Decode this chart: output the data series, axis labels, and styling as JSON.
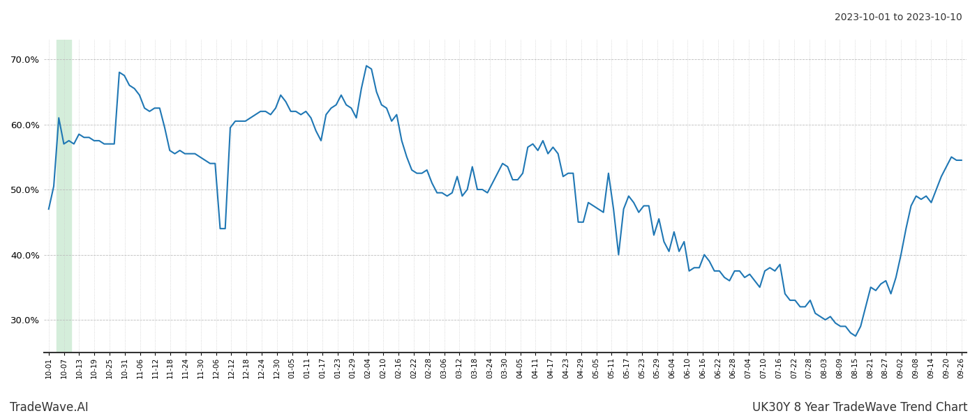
{
  "title_date_range": "2023-10-01 to 2023-10-10",
  "footer_left": "TradeWave.AI",
  "footer_right": "UK30Y 8 Year TradeWave Trend Chart",
  "line_color": "#1f77b4",
  "line_width": 1.5,
  "shaded_region_color": "#d4edda",
  "background_color": "#ffffff",
  "grid_color_h": "#bbbbbb",
  "grid_color_v": "#cccccc",
  "ylim": [
    25.0,
    73.0
  ],
  "yticks": [
    30.0,
    40.0,
    50.0,
    60.0,
    70.0
  ],
  "x_labels": [
    "10-01",
    "10-07",
    "10-13",
    "10-19",
    "10-25",
    "10-31",
    "11-06",
    "11-12",
    "11-18",
    "11-24",
    "11-30",
    "12-06",
    "12-12",
    "12-18",
    "12-24",
    "12-30",
    "01-05",
    "01-11",
    "01-17",
    "01-23",
    "01-29",
    "02-04",
    "02-10",
    "02-16",
    "02-22",
    "02-28",
    "03-06",
    "03-12",
    "03-18",
    "03-24",
    "03-30",
    "04-05",
    "04-11",
    "04-17",
    "04-23",
    "04-29",
    "05-05",
    "05-11",
    "05-17",
    "05-23",
    "05-29",
    "06-04",
    "06-10",
    "06-16",
    "06-22",
    "06-28",
    "07-04",
    "07-10",
    "07-16",
    "07-22",
    "07-28",
    "08-03",
    "08-09",
    "08-15",
    "08-21",
    "08-27",
    "09-02",
    "09-08",
    "09-14",
    "09-20",
    "09-26"
  ],
  "values": [
    47.0,
    50.5,
    61.0,
    57.0,
    57.5,
    57.0,
    58.5,
    58.0,
    58.0,
    57.5,
    57.5,
    57.0,
    57.0,
    57.0,
    68.0,
    67.5,
    66.0,
    65.5,
    64.5,
    62.5,
    62.0,
    62.5,
    62.5,
    59.5,
    56.0,
    55.5,
    56.0,
    55.5,
    55.5,
    55.5,
    55.0,
    54.5,
    54.0,
    54.0,
    44.0,
    44.0,
    59.5,
    60.5,
    60.5,
    60.5,
    61.0,
    61.5,
    62.0,
    62.0,
    61.5,
    62.5,
    64.5,
    63.5,
    62.0,
    62.0,
    61.5,
    62.0,
    61.0,
    59.0,
    57.5,
    61.5,
    62.5,
    63.0,
    64.5,
    63.0,
    62.5,
    61.0,
    65.5,
    69.0,
    68.5,
    65.0,
    63.0,
    62.5,
    60.5,
    61.5,
    57.5,
    55.0,
    53.0,
    52.5,
    52.5,
    53.0,
    51.0,
    49.5,
    49.5,
    49.0,
    49.5,
    52.0,
    49.0,
    50.0,
    53.5,
    50.0,
    50.0,
    49.5,
    51.0,
    52.5,
    54.0,
    53.5,
    51.5,
    51.5,
    52.5,
    56.5,
    57.0,
    56.0,
    57.5,
    55.5,
    56.5,
    55.5,
    52.0,
    52.5,
    52.5,
    45.0,
    45.0,
    48.0,
    47.5,
    47.0,
    46.5,
    52.5,
    47.0,
    40.0,
    47.0,
    49.0,
    48.0,
    46.5,
    47.5,
    47.5,
    43.0,
    45.5,
    42.0,
    40.5,
    43.5,
    40.5,
    42.0,
    37.5,
    38.0,
    38.0,
    40.0,
    39.0,
    37.5,
    37.5,
    36.5,
    36.0,
    37.5,
    37.5,
    36.5,
    37.0,
    36.0,
    35.0,
    37.5,
    38.0,
    37.5,
    38.5,
    34.0,
    33.0,
    33.0,
    32.0,
    32.0,
    33.0,
    31.0,
    30.5,
    30.0,
    30.5,
    29.5,
    29.0,
    29.0,
    28.0,
    27.5,
    29.0,
    32.0,
    35.0,
    34.5,
    35.5,
    36.0,
    34.0,
    36.5,
    40.0,
    44.0,
    47.5,
    49.0,
    48.5,
    49.0,
    48.0,
    50.0,
    52.0,
    53.5,
    55.0,
    54.5,
    54.5
  ]
}
